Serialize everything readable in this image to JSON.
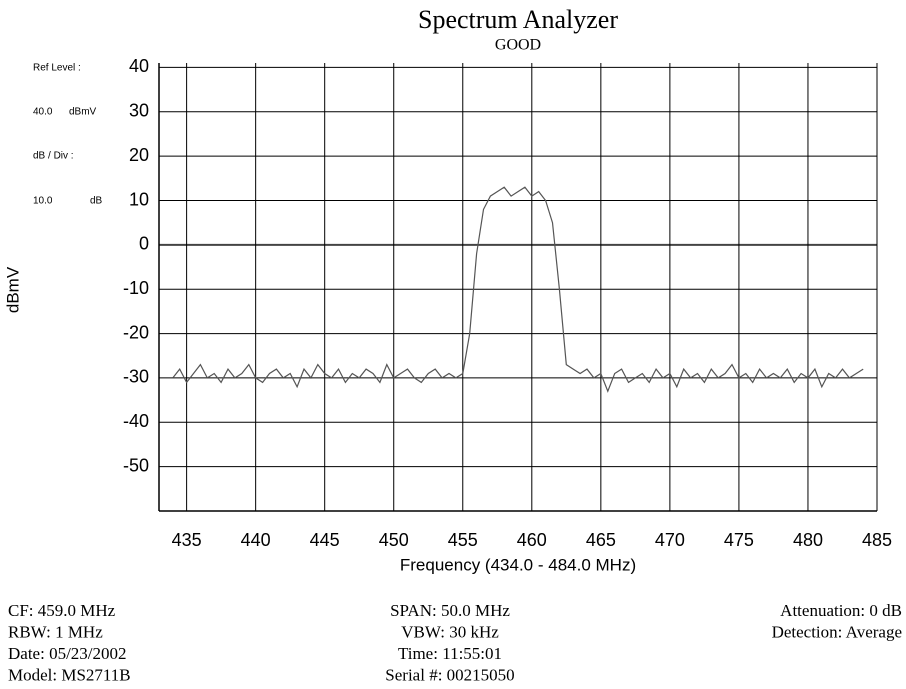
{
  "chart_data": {
    "type": "line",
    "title": "Spectrum Analyzer",
    "subtitle": "GOOD",
    "x_label": "Frequency (434.0 - 484.0 MHz)",
    "y_label": "dBmV",
    "side_labels": [
      "Ref Level :",
      "40.0",
      "dBmV",
      "dB / Div :",
      "10.0",
      "dB"
    ],
    "xlim": [
      433,
      485
    ],
    "xticks": [
      435,
      440,
      445,
      450,
      455,
      460,
      465,
      470,
      475,
      480,
      485
    ],
    "ylim": [
      -60,
      41
    ],
    "yticks": [
      40,
      30,
      20,
      10,
      0,
      -10,
      -20,
      -30,
      -40,
      -50
    ],
    "grid": true,
    "x": [
      434,
      434.5,
      435,
      435.5,
      436,
      436.5,
      437,
      437.5,
      438,
      438.5,
      439,
      439.5,
      440,
      440.5,
      441,
      441.5,
      442,
      442.5,
      443,
      443.5,
      444,
      444.5,
      445,
      445.5,
      446,
      446.5,
      447,
      447.5,
      448,
      448.5,
      449,
      449.5,
      450,
      450.5,
      451,
      451.5,
      452,
      452.5,
      453,
      453.5,
      454,
      454.5,
      455,
      455.5,
      456,
      456.5,
      457,
      457.5,
      458,
      458.5,
      459,
      459.5,
      460,
      460.5,
      461,
      461.5,
      462,
      462.5,
      463,
      463.5,
      464,
      464.5,
      465,
      465.5,
      466,
      466.5,
      467,
      467.5,
      468,
      468.5,
      469,
      469.5,
      470,
      470.5,
      471,
      471.5,
      472,
      472.5,
      473,
      473.5,
      474,
      474.5,
      475,
      475.5,
      476,
      476.5,
      477,
      477.5,
      478,
      478.5,
      479,
      479.5,
      480,
      480.5,
      481,
      481.5,
      482,
      482.5,
      483,
      483.5,
      484
    ],
    "series": [
      {
        "color": "#555555",
        "values": [
          -30,
          -28,
          -31,
          -29,
          -27,
          -30,
          -29,
          -31,
          -28,
          -30,
          -29,
          -27,
          -30,
          -31,
          -29,
          -28,
          -30,
          -29,
          -32,
          -28,
          -30,
          -27,
          -29,
          -30,
          -28,
          -31,
          -29,
          -30,
          -28,
          -29,
          -31,
          -27,
          -30,
          -29,
          -28,
          -30,
          -31,
          -29,
          -28,
          -30,
          -29,
          -30,
          -29,
          -20,
          -2,
          8,
          11,
          12,
          13,
          11,
          12,
          13,
          11,
          12,
          10,
          5,
          -10,
          -27,
          -28,
          -29,
          -28,
          -30,
          -29,
          -33,
          -29,
          -28,
          -31,
          -30,
          -29,
          -31,
          -28,
          -30,
          -29,
          -32,
          -28,
          -30,
          -29,
          -31,
          -28,
          -30,
          -29,
          -27,
          -30,
          -29,
          -31,
          -28,
          -30,
          -29,
          -30,
          -28,
          -31,
          -29,
          -30,
          -28,
          -32,
          -29,
          -30,
          -28,
          -30,
          -29,
          -28
        ]
      }
    ]
  },
  "footer": {
    "left": [
      "CF: 459.0 MHz",
      "RBW: 1 MHz",
      "Date: 05/23/2002",
      "Model: MS2711B"
    ],
    "center": [
      "SPAN: 50.0 MHz",
      "VBW: 30 kHz",
      "Time: 11:55:01",
      "Serial #: 00215050"
    ],
    "right": [
      "Attenuation: 0 dB",
      "Detection: Average"
    ]
  }
}
